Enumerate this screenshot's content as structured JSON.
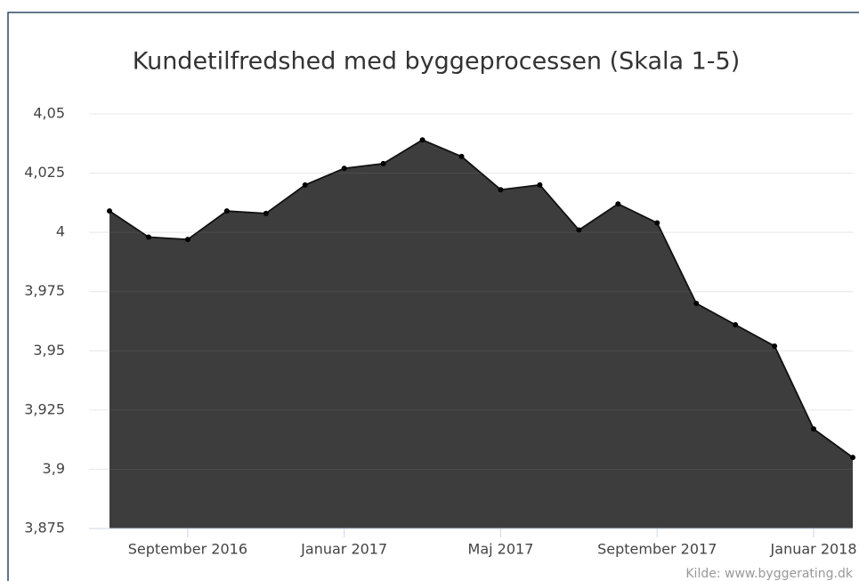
{
  "chart_data": {
    "type": "area",
    "title": "Kundetilfredshed med byggeprocessen (Skala 1-5)",
    "source": "Kilde: www.byggerating.dk",
    "x": [
      "2016-07",
      "2016-08",
      "2016-09",
      "2016-10",
      "2016-11",
      "2016-12",
      "2017-01",
      "2017-02",
      "2017-03",
      "2017-04",
      "2017-05",
      "2017-06",
      "2017-07",
      "2017-08",
      "2017-09",
      "2017-10",
      "2017-11",
      "2017-12",
      "2018-01",
      "2018-02"
    ],
    "values": [
      4.009,
      3.998,
      3.997,
      4.009,
      4.008,
      4.02,
      4.027,
      4.029,
      4.039,
      4.032,
      4.018,
      4.02,
      4.001,
      4.012,
      4.004,
      3.97,
      3.961,
      3.952,
      3.917,
      3.905
    ],
    "color": "#3d3d3d",
    "xlim": [
      "2016-07",
      "2018-02"
    ],
    "xticks": [
      {
        "value": "2016-09",
        "label": "September 2016"
      },
      {
        "value": "2017-01",
        "label": "Januar 2017"
      },
      {
        "value": "2017-05",
        "label": "Maj 2017"
      },
      {
        "value": "2017-09",
        "label": "September 2017"
      },
      {
        "value": "2018-01",
        "label": "Januar 2018"
      }
    ],
    "ylim": [
      3.875,
      4.05
    ],
    "yticks": [
      {
        "value": 3.875,
        "label": "3,875"
      },
      {
        "value": 3.9,
        "label": "3,9"
      },
      {
        "value": 3.925,
        "label": "3,925"
      },
      {
        "value": 3.95,
        "label": "3,95"
      },
      {
        "value": 3.975,
        "label": "3,975"
      },
      4,
      {
        "value": 4.025,
        "label": "4,025"
      },
      {
        "value": 4.05,
        "label": "4,05"
      }
    ],
    "grid": true
  }
}
